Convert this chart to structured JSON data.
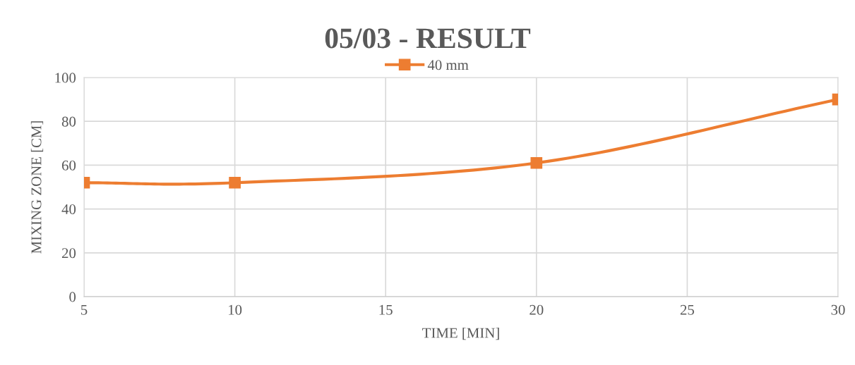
{
  "chart_data": {
    "type": "line",
    "title": "05/03 - RESULT",
    "xlabel": "TIME [MIN]",
    "ylabel": "MIXING ZONE [CM]",
    "x": [
      5,
      10,
      20,
      30
    ],
    "series": [
      {
        "name": "40 mm",
        "color": "#ed7d31",
        "values": [
          52,
          52,
          61,
          90
        ]
      }
    ],
    "xlim": [
      5,
      30
    ],
    "xticks": [
      5,
      10,
      15,
      20,
      25,
      30
    ],
    "ylim": [
      0,
      100
    ],
    "yticks": [
      0,
      20,
      40,
      60,
      80,
      100
    ],
    "grid": true,
    "legend": "top",
    "marker": "square",
    "line_style": "solid"
  }
}
